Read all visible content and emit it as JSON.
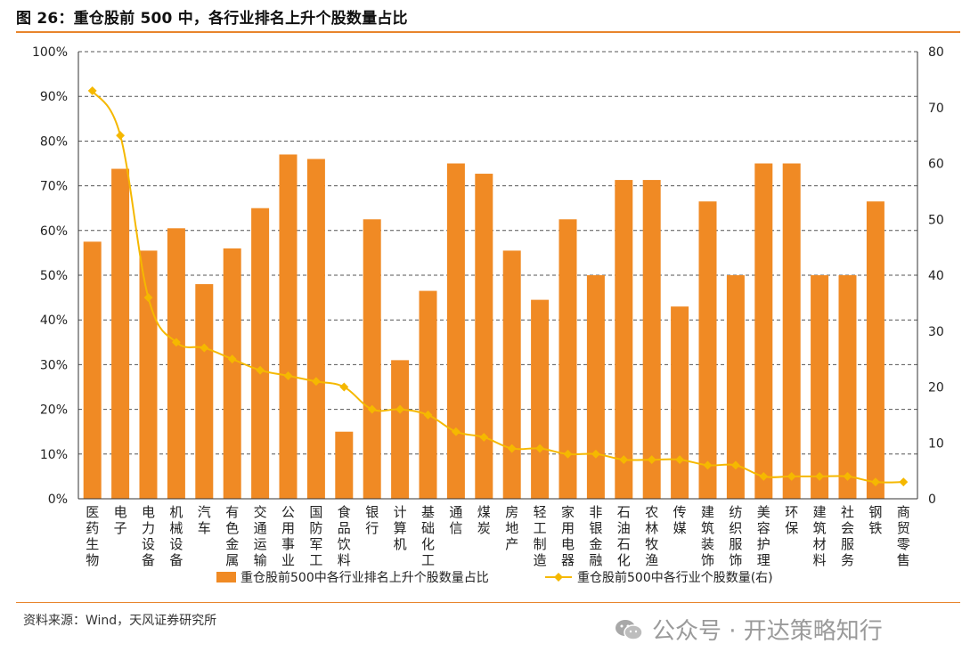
{
  "header": {
    "title": "图 26：重仓股前 500 中，各行业排名上升个股数量占比"
  },
  "footer": {
    "source": "资料来源：Wind，天风证券研究所",
    "watermark": "公众号 · 开达策略知行",
    "watermark_icon": "wechat-icon"
  },
  "colors": {
    "bar": "#f08a24",
    "line": "#f5b800",
    "accent": "#e8852c"
  },
  "chart_data": {
    "type": "bar",
    "categories": [
      "医药生物",
      "电子",
      "电力设备",
      "机械设备",
      "汽车",
      "有色金属",
      "交通运输",
      "公用事业",
      "国防军工",
      "食品饮料",
      "银行",
      "计算机",
      "基础化工",
      "通信",
      "煤炭",
      "房地产",
      "轻工制造",
      "家用电器",
      "非银金融",
      "石油石化",
      "农林牧渔",
      "传媒",
      "建筑装饰",
      "纺织服饰",
      "美容护理",
      "环保",
      "建筑材料",
      "社会服务",
      "钢铁",
      "商贸零售"
    ],
    "series": [
      {
        "name": "重仓股前500中各行业排名上升个股数量占比",
        "type": "bar",
        "axis": "left",
        "values": [
          57.5,
          73.8,
          55.5,
          60.5,
          48,
          56,
          65,
          77,
          76,
          15,
          62.5,
          31,
          46.5,
          75,
          72.7,
          55.5,
          44.5,
          62.5,
          50,
          71.3,
          71.3,
          43,
          66.5,
          50,
          75,
          75,
          50,
          50,
          66.5,
          null
        ]
      },
      {
        "name": "重仓股前500中各行业个股数量(右)",
        "type": "line",
        "axis": "right",
        "values": [
          73,
          65,
          36,
          28,
          27,
          25,
          23,
          22,
          21,
          20,
          16,
          16,
          15,
          12,
          11,
          9,
          9,
          8,
          8,
          7,
          7,
          7,
          6,
          6,
          4,
          4,
          4,
          4,
          3,
          3
        ]
      }
    ],
    "y_left": {
      "ticks": [
        "0%",
        "10%",
        "20%",
        "30%",
        "40%",
        "50%",
        "60%",
        "70%",
        "80%",
        "90%",
        "100%"
      ],
      "ylim": [
        0,
        100
      ]
    },
    "y_right": {
      "ticks": [
        "0",
        "10",
        "20",
        "30",
        "40",
        "50",
        "60",
        "70",
        "80"
      ],
      "ylim": [
        0,
        80
      ]
    },
    "grid": "dashed horizontal",
    "legend": "bottom"
  }
}
